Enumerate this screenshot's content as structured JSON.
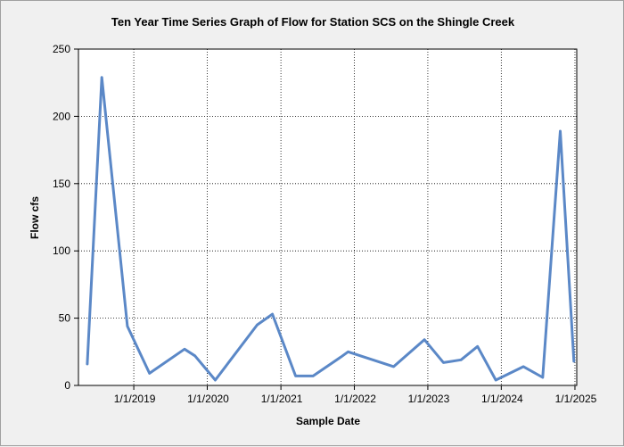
{
  "chart_data": {
    "type": "line",
    "title": "Ten Year Time Series Graph of Flow for Station SCS on the Shingle Creek",
    "xlabel": "Sample Date",
    "ylabel": "Flow cfs",
    "xlim": [
      "2018-04-01",
      "2025-01-10"
    ],
    "ylim": [
      0,
      250
    ],
    "y_ticks": [
      0,
      50,
      100,
      150,
      200,
      250
    ],
    "x_ticks": [
      "2019-01-01",
      "2020-01-01",
      "2021-01-01",
      "2022-01-01",
      "2023-01-01",
      "2024-01-01",
      "2025-01-01"
    ],
    "x_tick_labels": [
      "1/1/2019",
      "1/1/2020",
      "1/1/2021",
      "1/1/2022",
      "1/1/2023",
      "1/1/2024",
      "1/1/2025"
    ],
    "grid": true,
    "legend": "none",
    "series": [
      {
        "color": "#5b88c7",
        "points": [
          {
            "x": "2018-05-15",
            "y": 16
          },
          {
            "x": "2018-07-26",
            "y": 229
          },
          {
            "x": "2018-11-30",
            "y": 44
          },
          {
            "x": "2019-03-20",
            "y": 9
          },
          {
            "x": "2019-09-10",
            "y": 27
          },
          {
            "x": "2019-11-01",
            "y": 22
          },
          {
            "x": "2020-02-10",
            "y": 4
          },
          {
            "x": "2020-09-05",
            "y": 45
          },
          {
            "x": "2020-11-20",
            "y": 53
          },
          {
            "x": "2021-03-15",
            "y": 7
          },
          {
            "x": "2021-06-10",
            "y": 7
          },
          {
            "x": "2021-10-25",
            "y": 21
          },
          {
            "x": "2021-12-01",
            "y": 25
          },
          {
            "x": "2022-07-15",
            "y": 14
          },
          {
            "x": "2022-12-15",
            "y": 34
          },
          {
            "x": "2023-03-20",
            "y": 17
          },
          {
            "x": "2023-06-15",
            "y": 19
          },
          {
            "x": "2023-09-05",
            "y": 29
          },
          {
            "x": "2023-12-05",
            "y": 4
          },
          {
            "x": "2024-04-20",
            "y": 14
          },
          {
            "x": "2024-07-25",
            "y": 6
          },
          {
            "x": "2024-10-20",
            "y": 189
          },
          {
            "x": "2024-12-27",
            "y": 18
          }
        ]
      }
    ]
  }
}
